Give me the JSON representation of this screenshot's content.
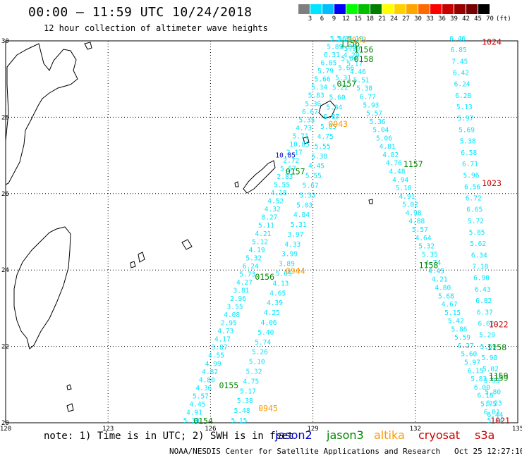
{
  "title": "00:00 — 11:59 UTC 10/24/2018",
  "subtitle": "12 hour collection of altimeter wave heights",
  "colorbar": {
    "labels": [
      "3",
      "6",
      "9",
      "12",
      "15",
      "18",
      "21",
      "24",
      "27",
      "30",
      "33",
      "36",
      "39",
      "42",
      "45",
      "70",
      "(ft)"
    ],
    "colors": [
      "#7f7f7f",
      "#00e5ff",
      "#00bfff",
      "#0000ff",
      "#00ff00",
      "#00c000",
      "#008000",
      "#ffff00",
      "#ffd000",
      "#ffa500",
      "#ff6a00",
      "#ff0000",
      "#c80000",
      "#960000",
      "#780000",
      "#000000"
    ]
  },
  "axes": {
    "x_ticks": [
      "120",
      "123",
      "126",
      "129",
      "132",
      "135"
    ],
    "y_ticks": [
      "30",
      "28",
      "26",
      "24",
      "22",
      "20"
    ]
  },
  "note": "note: 1) Time is in UTC; 2) SWH is in feet",
  "legend": [
    {
      "name": "jason2",
      "color": "#0000cc"
    },
    {
      "name": "jason3",
      "color": "#008800"
    },
    {
      "name": "altika",
      "color": "#ff9900"
    },
    {
      "name": "cryosat",
      "color": "#cc0000"
    },
    {
      "name": "s3a",
      "color": "#cc0000"
    }
  ],
  "footer": "NOAA/NESDIS Center for Satellite Applications and Research   Oct 25 12:27:10 UTC 2018",
  "track_times": [
    {
      "text": "0943",
      "color": "#ff9900",
      "lon": 130.0,
      "lat": 29.95
    },
    {
      "text": "1156",
      "color": "#008800",
      "lon": 129.8,
      "lat": 29.85
    },
    {
      "text": "1156",
      "color": "#008800",
      "lon": 130.2,
      "lat": 29.7
    },
    {
      "text": "0158",
      "color": "#008800",
      "lon": 130.2,
      "lat": 29.45
    },
    {
      "text": "0157",
      "color": "#008800",
      "lon": 129.7,
      "lat": 28.8
    },
    {
      "text": "0943",
      "color": "#ff9900",
      "lon": 129.45,
      "lat": 27.75
    },
    {
      "text": "0157",
      "color": "#008800",
      "lon": 128.2,
      "lat": 26.5
    },
    {
      "text": "1157",
      "color": "#008800",
      "lon": 131.65,
      "lat": 26.7
    },
    {
      "text": "1024",
      "color": "#cc0000",
      "lon": 133.95,
      "lat": 29.9
    },
    {
      "text": "1023",
      "color": "#cc0000",
      "lon": 133.95,
      "lat": 26.2
    },
    {
      "text": "0944",
      "color": "#ff9900",
      "lon": 128.2,
      "lat": 23.9
    },
    {
      "text": "0156",
      "color": "#008800",
      "lon": 127.3,
      "lat": 23.75
    },
    {
      "text": "1158",
      "color": "#008800",
      "lon": 132.1,
      "lat": 24.05
    },
    {
      "text": "1022",
      "color": "#cc0000",
      "lon": 134.15,
      "lat": 22.5
    },
    {
      "text": "1158",
      "color": "#008800",
      "lon": 134.1,
      "lat": 21.9
    },
    {
      "text": "1159",
      "color": "#008800",
      "lon": 134.15,
      "lat": 21.15
    },
    {
      "text": "1159",
      "color": "#008800",
      "lon": 134.15,
      "lat": 21.1
    },
    {
      "text": "0155",
      "color": "#008800",
      "lon": 126.25,
      "lat": 20.9
    },
    {
      "text": "0945",
      "color": "#ff9900",
      "lon": 127.4,
      "lat": 20.3
    },
    {
      "text": "0154",
      "color": "#008800",
      "lon": 125.5,
      "lat": 19.97
    },
    {
      "text": "1021",
      "color": "#cc0000",
      "lon": 134.2,
      "lat": 19.98
    }
  ],
  "track1_sw": {
    "color": "#00e5ff",
    "lon0": 125.2,
    "lat0": 20.0,
    "lon1": 129.5,
    "lat1": 30.0,
    "values": [
      "5.39",
      "4.91",
      "4.45",
      "5.57",
      "4.36",
      "4.80",
      "4.82",
      "4.99",
      "4.55",
      "3.87",
      "4.17",
      "4.73",
      "2.95",
      "4.08",
      "3.55",
      "2.96",
      "3.81",
      "4.27",
      "5.73",
      "6.24",
      "5.32",
      "4.19",
      "5.12",
      "4.21",
      "5.11",
      "8.27",
      "4.32",
      "4.52",
      "4.18",
      "5.55",
      "2.83",
      "5.57",
      "2.72",
      "2.17",
      "10.85",
      "5.71",
      "4.73",
      "5.35",
      "6.67",
      "5.36",
      "5.83",
      "5.34",
      "5.66",
      "5.79",
      "6.05",
      "6.31",
      "5.89",
      "5.56"
    ]
  },
  "track2_sw": {
    "color": "#00e5ff",
    "lon0": 126.6,
    "lat0": 20.0,
    "lon1": 130.0,
    "lat1": 30.0,
    "values": [
      "5.15",
      "5.48",
      "5.38",
      "5.17",
      "4.75",
      "5.32",
      "5.10",
      "5.26",
      "5.74",
      "5.40",
      "4.06",
      "4.25",
      "4.39",
      "4.65",
      "4.13",
      "5.69",
      "3.89",
      "3.99",
      "4.33",
      "3.97",
      "5.31",
      "4.84",
      "5.03",
      "5.33",
      "5.67",
      "5.55",
      "4.45",
      "5.38",
      "5.55",
      "4.75",
      "5.85",
      "6.87",
      "5.84",
      "5.60",
      "5.22",
      "5.31",
      "5.66",
      "5.64",
      "5.90",
      "6.10"
    ]
  },
  "track3_nw": {
    "color": "#00e5ff",
    "lon0": 134.1,
    "lat0": 20.0,
    "lon1": 129.7,
    "lat1": 30.0,
    "values": [
      "5.44",
      "6.01",
      "5.75",
      "6.18",
      "6.00",
      "5.83",
      "6.15",
      "5.97",
      "5.60",
      "6.27",
      "5.59",
      "5.86",
      "5.42",
      "5.15",
      "4.67",
      "5.68",
      "4.80",
      "4.21",
      "4.45",
      "4.74",
      "5.35",
      "5.32",
      "4.64",
      "5.57",
      "4.88",
      "4.98",
      "5.02",
      "4.91",
      "5.10",
      "4.94",
      "4.48",
      "4.76",
      "4.82",
      "4.81",
      "5.06",
      "5.04",
      "5.36",
      "5.57",
      "5.93",
      "6.77",
      "5.38",
      "5.51",
      "4.46",
      "5.17",
      "4.29",
      "4.88",
      "5.31"
    ]
  },
  "track4_n": {
    "color": "#00e5ff",
    "lon0": 134.1,
    "lat0": 20.15,
    "lon1": 133.0,
    "lat1": 30.0,
    "values": [
      "6.44",
      "6.23",
      "5.80",
      "5.93",
      "5.02",
      "5.98",
      "5.69",
      "5.29",
      "6.62",
      "6.37",
      "6.82",
      "6.43",
      "6.90",
      "7.18",
      "6.34",
      "5.62",
      "5.85",
      "5.72",
      "6.65",
      "6.72",
      "6.56",
      "5.96",
      "6.71",
      "6.58",
      "5.38",
      "5.69",
      "5.97",
      "5.13",
      "6.28",
      "6.24",
      "6.42",
      "7.45",
      "6.85",
      "6.46"
    ]
  },
  "white_label": {
    "text": "10.85",
    "color": "#0000cc",
    "lon": 127.9,
    "lat": 26.95
  }
}
